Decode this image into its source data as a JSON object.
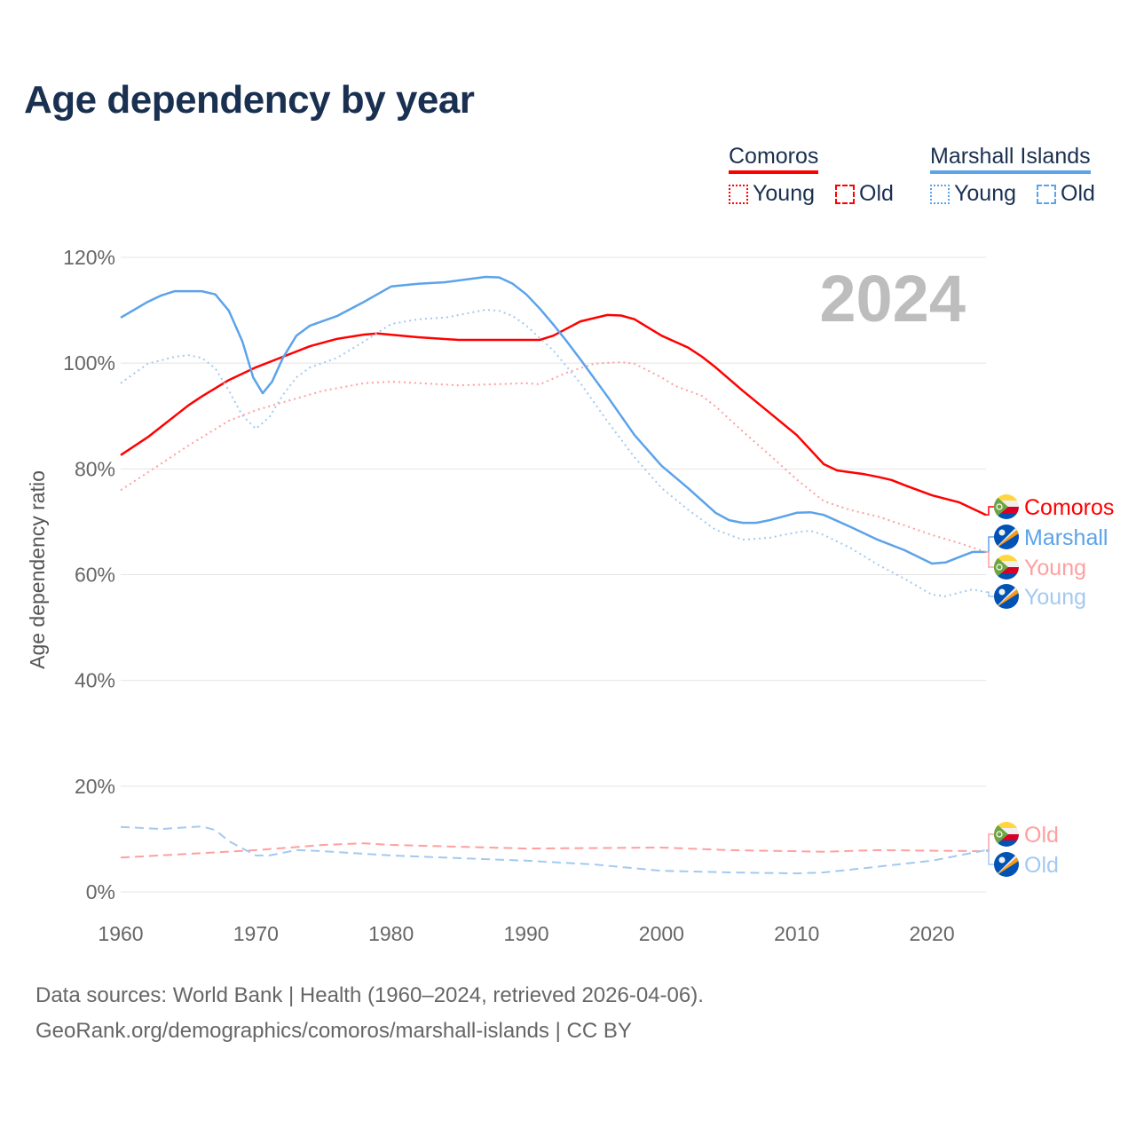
{
  "title": "Age dependency by year",
  "legend": {
    "countries": [
      {
        "name": "Comoros",
        "color": "#ff0000",
        "young_label": "Young",
        "old_label": "Old"
      },
      {
        "name": "Marshall Islands",
        "color": "#5ba3ea",
        "young_label": "Young",
        "old_label": "Old"
      }
    ]
  },
  "footer": {
    "line1": "Data sources: World Bank | Health (1960–2024, retrieved 2026-04-06).",
    "line2": "GeoRank.org/demographics/comoros/marshall-islands | CC BY"
  },
  "chart_data": {
    "type": "line",
    "title": "Age dependency by year",
    "year_watermark": "2024",
    "xlabel": "",
    "ylabel": "Age dependency ratio",
    "xlim": [
      1960,
      2024
    ],
    "ylim": [
      0,
      120
    ],
    "x_ticks": [
      "1960",
      "1970",
      "1980",
      "1990",
      "2000",
      "2010",
      "2020"
    ],
    "y_ticks": [
      "0%",
      "20%",
      "40%",
      "60%",
      "80%",
      "100%",
      "120%"
    ],
    "grid": true,
    "series": [
      {
        "name": "Comoros",
        "end_label": "Comoros",
        "style": "solid",
        "color": "#ff0000",
        "flag": "comoros",
        "points": [
          [
            1960,
            82.6
          ],
          [
            1962,
            86
          ],
          [
            1964,
            90
          ],
          [
            1965,
            92
          ],
          [
            1966,
            93.7
          ],
          [
            1968,
            96.8
          ],
          [
            1970,
            99.2
          ],
          [
            1972,
            101.2
          ],
          [
            1974,
            103.2
          ],
          [
            1976,
            104.6
          ],
          [
            1978,
            105.4
          ],
          [
            1979,
            105.6
          ],
          [
            1982,
            104.9
          ],
          [
            1985,
            104.4
          ],
          [
            1991,
            104.4
          ],
          [
            1992,
            105.2
          ],
          [
            1994,
            107.9
          ],
          [
            1996,
            109.1
          ],
          [
            1997,
            109
          ],
          [
            1998,
            108.3
          ],
          [
            2000,
            105.2
          ],
          [
            2002,
            102.9
          ],
          [
            2003,
            101.2
          ],
          [
            2004,
            99.2
          ],
          [
            2006,
            94.8
          ],
          [
            2008,
            90.6
          ],
          [
            2010,
            86.4
          ],
          [
            2012,
            80.9
          ],
          [
            2013,
            79.7
          ],
          [
            2015,
            79
          ],
          [
            2016,
            78.5
          ],
          [
            2017,
            77.9
          ],
          [
            2018,
            76.9
          ],
          [
            2020,
            75
          ],
          [
            2022,
            73.7
          ],
          [
            2024,
            71.3
          ]
        ]
      },
      {
        "name": "Marshall Islands",
        "end_label": "Marshall",
        "style": "solid",
        "color": "#5ba3ea",
        "flag": "marshall",
        "points": [
          [
            1960,
            108.6
          ],
          [
            1962,
            111.6
          ],
          [
            1963,
            112.8
          ],
          [
            1964,
            113.6
          ],
          [
            1966,
            113.6
          ],
          [
            1967,
            113
          ],
          [
            1968,
            109.9
          ],
          [
            1969,
            104.1
          ],
          [
            1969.8,
            97.3
          ],
          [
            1970.5,
            94.3
          ],
          [
            1971.2,
            96.5
          ],
          [
            1972,
            101
          ],
          [
            1973,
            105.2
          ],
          [
            1974,
            107.1
          ],
          [
            1976,
            108.9
          ],
          [
            1978,
            111.6
          ],
          [
            1980,
            114.5
          ],
          [
            1982,
            115
          ],
          [
            1984,
            115.3
          ],
          [
            1987,
            116.3
          ],
          [
            1988,
            116.2
          ],
          [
            1989,
            115
          ],
          [
            1990,
            113
          ],
          [
            1991,
            110.3
          ],
          [
            1992,
            107.3
          ],
          [
            1993,
            104.1
          ],
          [
            1994,
            100.7
          ],
          [
            1996,
            93.7
          ],
          [
            1998,
            86.4
          ],
          [
            2000,
            80.6
          ],
          [
            2002,
            76.3
          ],
          [
            2004,
            71.7
          ],
          [
            2005,
            70.3
          ],
          [
            2006,
            69.8
          ],
          [
            2007,
            69.8
          ],
          [
            2008,
            70.3
          ],
          [
            2010,
            71.7
          ],
          [
            2011,
            71.8
          ],
          [
            2012,
            71.3
          ],
          [
            2014,
            69
          ],
          [
            2016,
            66.6
          ],
          [
            2018,
            64.6
          ],
          [
            2020,
            62.1
          ],
          [
            2021,
            62.3
          ],
          [
            2022,
            63.3
          ],
          [
            2023,
            64.3
          ],
          [
            2024,
            64.3
          ]
        ]
      },
      {
        "name": "Comoros Young",
        "end_label": "Young",
        "style": "dotted",
        "color": "#ff9f9f",
        "flag": "comoros",
        "points": [
          [
            1960,
            76
          ],
          [
            1963,
            81
          ],
          [
            1965,
            84.4
          ],
          [
            1968,
            89.1
          ],
          [
            1970,
            91.1
          ],
          [
            1972,
            92.6
          ],
          [
            1975,
            94.8
          ],
          [
            1978,
            96.2
          ],
          [
            1980,
            96.5
          ],
          [
            1985,
            95.8
          ],
          [
            1990,
            96.2
          ],
          [
            1991,
            96
          ],
          [
            1993,
            98.2
          ],
          [
            1995,
            99.9
          ],
          [
            1997,
            100.2
          ],
          [
            1998,
            99.9
          ],
          [
            2000,
            97.3
          ],
          [
            2001,
            95.7
          ],
          [
            2003,
            93.8
          ],
          [
            2004,
            91.8
          ],
          [
            2006,
            87.1
          ],
          [
            2008,
            82.6
          ],
          [
            2010,
            78
          ],
          [
            2012,
            73.9
          ],
          [
            2014,
            72.2
          ],
          [
            2016,
            71
          ],
          [
            2018,
            69.3
          ],
          [
            2020,
            67.5
          ],
          [
            2022,
            66
          ],
          [
            2024,
            64.3
          ]
        ]
      },
      {
        "name": "Marshall Islands Young",
        "end_label": "Young",
        "style": "dotted",
        "color": "#a3c9f0",
        "flag": "marshall",
        "points": [
          [
            1960,
            96.2
          ],
          [
            1962,
            99.9
          ],
          [
            1964,
            101.2
          ],
          [
            1965,
            101.5
          ],
          [
            1966,
            101
          ],
          [
            1967,
            99
          ],
          [
            1968,
            94.8
          ],
          [
            1969,
            90.1
          ],
          [
            1970,
            87.6
          ],
          [
            1971,
            89.8
          ],
          [
            1972,
            94
          ],
          [
            1973,
            97.3
          ],
          [
            1974,
            99.2
          ],
          [
            1976,
            101
          ],
          [
            1978,
            104.1
          ],
          [
            1980,
            107.4
          ],
          [
            1982,
            108.3
          ],
          [
            1984,
            108.6
          ],
          [
            1986,
            109.6
          ],
          [
            1987,
            110.1
          ],
          [
            1988,
            109.9
          ],
          [
            1989,
            108.9
          ],
          [
            1990,
            107.1
          ],
          [
            1992,
            102.4
          ],
          [
            1994,
            96.2
          ],
          [
            1996,
            89
          ],
          [
            1998,
            82.2
          ],
          [
            2000,
            76.4
          ],
          [
            2002,
            72.2
          ],
          [
            2004,
            68.5
          ],
          [
            2006,
            66.6
          ],
          [
            2008,
            67
          ],
          [
            2010,
            68
          ],
          [
            2011,
            68.3
          ],
          [
            2012,
            67.5
          ],
          [
            2014,
            65
          ],
          [
            2016,
            61.9
          ],
          [
            2018,
            59.2
          ],
          [
            2020,
            56.2
          ],
          [
            2021,
            55.9
          ],
          [
            2022,
            56.6
          ],
          [
            2023,
            57.2
          ],
          [
            2024,
            56.7
          ]
        ]
      },
      {
        "name": "Comoros Old",
        "end_label": "Old",
        "style": "dashed",
        "color": "#ff9f9f",
        "flag": "comoros",
        "points": [
          [
            1960,
            6.5
          ],
          [
            1970,
            7.9
          ],
          [
            1975,
            8.9
          ],
          [
            1978,
            9.2
          ],
          [
            1980,
            8.9
          ],
          [
            1990,
            8.2
          ],
          [
            2000,
            8.4
          ],
          [
            2005,
            7.9
          ],
          [
            2012,
            7.6
          ],
          [
            2016,
            7.9
          ],
          [
            2024,
            7.7
          ]
        ]
      },
      {
        "name": "Marshall Islands Old",
        "end_label": "Old",
        "style": "dashed",
        "color": "#a3c9f0",
        "flag": "marshall",
        "points": [
          [
            1960,
            12.3
          ],
          [
            1963,
            11.9
          ],
          [
            1966,
            12.4
          ],
          [
            1967,
            11.7
          ],
          [
            1968,
            9.6
          ],
          [
            1970,
            6.9
          ],
          [
            1971,
            6.9
          ],
          [
            1973,
            7.9
          ],
          [
            1975,
            7.7
          ],
          [
            1980,
            6.9
          ],
          [
            1990,
            5.9
          ],
          [
            1995,
            5.2
          ],
          [
            2000,
            4
          ],
          [
            2005,
            3.7
          ],
          [
            2010,
            3.5
          ],
          [
            2012,
            3.7
          ],
          [
            2015,
            4.5
          ],
          [
            2020,
            5.9
          ],
          [
            2024,
            7.9
          ]
        ]
      }
    ]
  }
}
